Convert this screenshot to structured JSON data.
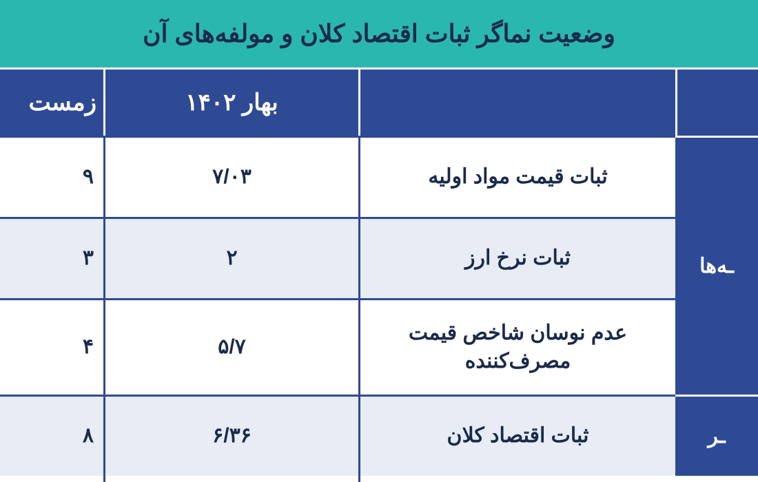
{
  "colors": {
    "title_bg": "#2ab7b0",
    "title_fg": "#1a2a4a",
    "header_bg": "#2f4a94",
    "header_fg": "#ffffff",
    "text_fg": "#1a2a4a",
    "row_bg_0": "#ffffff",
    "row_bg_1": "#e7ecf5",
    "grid_color": "#2f4a94"
  },
  "title": "وضعیت نماگر ثبات اقتصاد کلان و مولفه‌های آن",
  "columns": {
    "side_header": "",
    "label_header": "",
    "value_header": "بهار ۱۴۰۲",
    "partial_header": "زمست"
  },
  "side_groups": [
    {
      "label": "ـه‌ها",
      "span_rows": 3
    },
    {
      "label": "ـر",
      "span_rows": 1
    }
  ],
  "rows": [
    {
      "label": "ثبات قیمت مواد اولیه",
      "value": "۷/۰۳",
      "partial": "۹"
    },
    {
      "label": "ثبات نرخ ارز",
      "value": "۲",
      "partial": "۳"
    },
    {
      "label": "عدم نوسان شاخص قیمت مصرف‌کننده",
      "value": "۵/۷",
      "partial": "۴"
    },
    {
      "label": "ثبات اقتصاد کلان",
      "value": "۶/۳۶",
      "partial": "۸"
    }
  ]
}
